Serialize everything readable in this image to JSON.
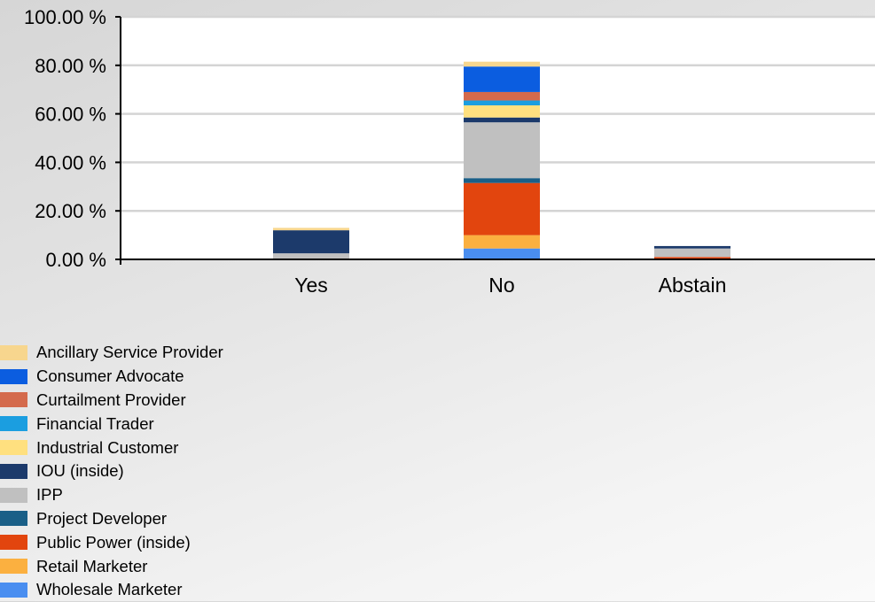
{
  "chart_data": {
    "type": "bar",
    "stacked": true,
    "categories": [
      "Yes",
      "No",
      "Abstain"
    ],
    "ylim": [
      0,
      100
    ],
    "yticks": [
      0,
      20,
      40,
      60,
      80,
      100
    ],
    "ytick_labels": [
      "0.00 %",
      "20.00 %",
      "40.00 %",
      "60.00 %",
      "80.00 %",
      "100.00 %"
    ],
    "grid": true,
    "legend_position": "bottom-left",
    "series": [
      {
        "name": "Wholesale Marketer",
        "color": "#4a8ef0",
        "values": [
          0,
          4.5,
          0
        ]
      },
      {
        "name": "Retail Marketer",
        "color": "#fbb040",
        "values": [
          0,
          5.5,
          0
        ]
      },
      {
        "name": "Public Power (inside)",
        "color": "#e2450e",
        "values": [
          0,
          21.5,
          1.0
        ]
      },
      {
        "name": "Project Developer",
        "color": "#1a5f87",
        "values": [
          0,
          2.0,
          0
        ]
      },
      {
        "name": "IPP",
        "color": "#c0c0c0",
        "values": [
          2.5,
          23.0,
          3.5
        ]
      },
      {
        "name": "IOU (inside)",
        "color": "#1c3a6b",
        "values": [
          9.5,
          2.0,
          1.0
        ]
      },
      {
        "name": "Industrial Customer",
        "color": "#ffe07f",
        "values": [
          0,
          5.0,
          0
        ]
      },
      {
        "name": "Financial Trader",
        "color": "#1b9ee0",
        "values": [
          0,
          2.0,
          0
        ]
      },
      {
        "name": "Curtailment Provider",
        "color": "#d46a4c",
        "values": [
          0,
          3.5,
          0
        ]
      },
      {
        "name": "Consumer Advocate",
        "color": "#0b5de0",
        "values": [
          0,
          10.5,
          0
        ]
      },
      {
        "name": "Ancillary Service Provider",
        "color": "#f7d68e",
        "values": [
          1.0,
          2.0,
          0
        ]
      }
    ]
  },
  "legend": [
    {
      "label": "Ancillary Service Provider",
      "color": "#f7d68e"
    },
    {
      "label": "Consumer Advocate",
      "color": "#0b5de0"
    },
    {
      "label": "Curtailment Provider",
      "color": "#d46a4c"
    },
    {
      "label": "Financial Trader",
      "color": "#1b9ee0"
    },
    {
      "label": "Industrial Customer",
      "color": "#ffe07f"
    },
    {
      "label": "IOU (inside)",
      "color": "#1c3a6b"
    },
    {
      "label": "IPP",
      "color": "#c0c0c0"
    },
    {
      "label": "Project Developer",
      "color": "#1a5f87"
    },
    {
      "label": "Public Power (inside)",
      "color": "#e2450e"
    },
    {
      "label": "Retail Marketer",
      "color": "#fbb040"
    },
    {
      "label": "Wholesale Marketer",
      "color": "#4a8ef0"
    }
  ]
}
